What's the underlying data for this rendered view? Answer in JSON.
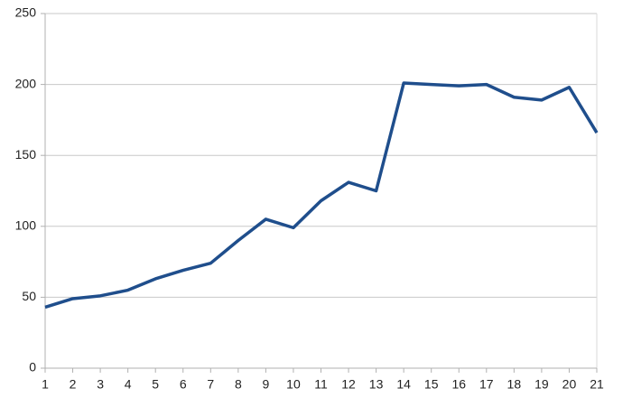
{
  "chart_data": {
    "type": "line",
    "x": [
      1,
      2,
      3,
      4,
      5,
      6,
      7,
      8,
      9,
      10,
      11,
      12,
      13,
      14,
      15,
      16,
      17,
      18,
      19,
      20,
      21
    ],
    "series": [
      {
        "color": "#1f4e8c",
        "values": [
          43,
          49,
          51,
          55,
          63,
          69,
          74,
          90,
          105,
          99,
          118,
          131,
          125,
          201,
          200,
          199,
          200,
          191,
          189,
          198,
          166
        ]
      }
    ],
    "xlim": [
      1,
      21
    ],
    "xticks": [
      1,
      2,
      3,
      4,
      5,
      6,
      7,
      8,
      9,
      10,
      11,
      12,
      13,
      14,
      15,
      16,
      17,
      18,
      19,
      20,
      21
    ],
    "ylim": [
      0,
      250
    ],
    "yticks": [
      0,
      50,
      100,
      150,
      200,
      250
    ],
    "grid": true
  }
}
